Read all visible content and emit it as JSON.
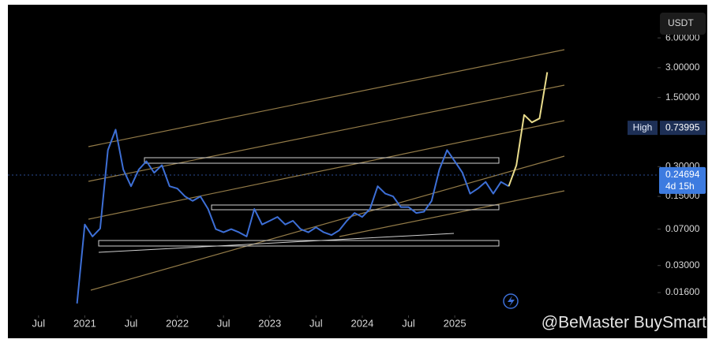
{
  "chart_data": {
    "type": "line",
    "currency": "USDT",
    "watermark": "@BeMaster BuySmart",
    "log_scale": true,
    "grid": false,
    "x": [
      "2020-12",
      "2021-01",
      "2021-02",
      "2021-03",
      "2021-04",
      "2021-05",
      "2021-06",
      "2021-07",
      "2021-08",
      "2021-09",
      "2021-10",
      "2021-11",
      "2021-12",
      "2022-01",
      "2022-02",
      "2022-03",
      "2022-04",
      "2022-05",
      "2022-06",
      "2022-07",
      "2022-08",
      "2022-09",
      "2022-10",
      "2022-11",
      "2022-12",
      "2023-01",
      "2023-02",
      "2023-03",
      "2023-04",
      "2023-05",
      "2023-06",
      "2023-07",
      "2023-08",
      "2023-09",
      "2023-10",
      "2023-11",
      "2023-12",
      "2024-01",
      "2024-02",
      "2024-03",
      "2024-04",
      "2024-05",
      "2024-06",
      "2024-07",
      "2024-08",
      "2024-09",
      "2024-10",
      "2024-11",
      "2024-12",
      "2025-01",
      "2025-02",
      "2025-03",
      "2025-04",
      "2025-05",
      "2025-06",
      "2025-07",
      "2025-08",
      "2025-09",
      "2025-10",
      "2025-11",
      "2025-12",
      "2026-01"
    ],
    "series": [
      {
        "color": "#3d6fd6",
        "values": [
          0.0124,
          0.078,
          0.059,
          0.071,
          0.44,
          0.71,
          0.28,
          0.19,
          0.28,
          0.34,
          0.26,
          0.31,
          0.19,
          0.18,
          0.15,
          0.135,
          0.15,
          0.112,
          0.07,
          0.065,
          0.07,
          0.065,
          0.059,
          0.112,
          0.078,
          0.085,
          0.093,
          0.078,
          0.085,
          0.07,
          0.065,
          0.073,
          0.065,
          0.061,
          0.068,
          0.085,
          0.102,
          0.093,
          0.112,
          0.19,
          0.16,
          0.15,
          0.117,
          0.117,
          0.102,
          0.105,
          0.135,
          0.28,
          0.44,
          0.34,
          0.26,
          0.16,
          0.18,
          0.21,
          0.16,
          0.21,
          0.19,
          null,
          null,
          null,
          null,
          null
        ]
      },
      {
        "color": "#e9dc8c",
        "values": [
          null,
          null,
          null,
          null,
          null,
          null,
          null,
          null,
          null,
          null,
          null,
          null,
          null,
          null,
          null,
          null,
          null,
          null,
          null,
          null,
          null,
          null,
          null,
          null,
          null,
          null,
          null,
          null,
          null,
          null,
          null,
          null,
          null,
          null,
          null,
          null,
          null,
          null,
          null,
          null,
          null,
          null,
          null,
          null,
          null,
          null,
          null,
          null,
          null,
          null,
          null,
          null,
          null,
          null,
          null,
          null,
          0.19,
          0.31,
          1.0,
          0.84,
          0.92,
          2.7
        ]
      }
    ],
    "xlim": [
      "2020-02",
      "2027-03"
    ],
    "xticks": [
      {
        "value": "2020-07",
        "label": "Jul"
      },
      {
        "value": "2021-01",
        "label": "2021"
      },
      {
        "value": "2021-07",
        "label": "Jul"
      },
      {
        "value": "2022-01",
        "label": "2022"
      },
      {
        "value": "2022-07",
        "label": "Jul"
      },
      {
        "value": "2023-01",
        "label": "2023"
      },
      {
        "value": "2023-07",
        "label": "Jul"
      },
      {
        "value": "2024-01",
        "label": "2024"
      },
      {
        "value": "2024-07",
        "label": "Jul"
      },
      {
        "value": "2025-01",
        "label": "2025"
      }
    ],
    "ylim": [
      0.0094,
      14.5
    ],
    "yticks": [
      {
        "value": 0.016,
        "label": "0.01600"
      },
      {
        "value": 0.03,
        "label": "0.03000"
      },
      {
        "value": 0.07,
        "label": "0.07000"
      },
      {
        "value": 0.15,
        "label": "0.15000"
      },
      {
        "value": 0.3,
        "label": "0.30000"
      },
      {
        "value": 1.5,
        "label": "1.50000"
      },
      {
        "value": 3,
        "label": "3.00000"
      },
      {
        "value": 6,
        "label": "6.00000"
      }
    ],
    "high": {
      "name": "High",
      "value": 0.73995,
      "label": "0.73995"
    },
    "last_price": {
      "value": 0.24694,
      "label": "0.24694",
      "countdown": "4d 15h"
    }
  }
}
